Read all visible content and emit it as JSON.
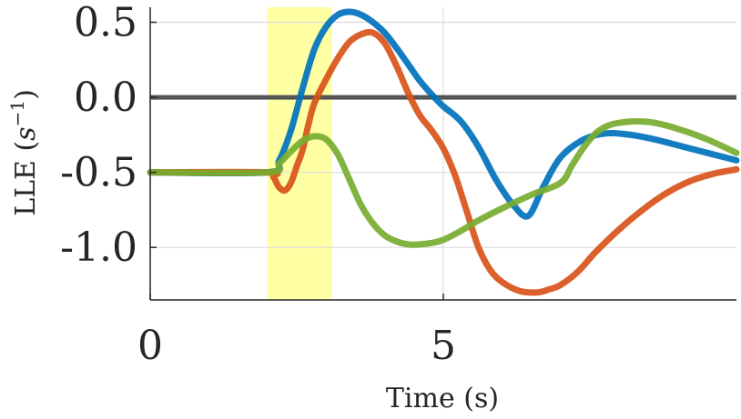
{
  "chart_data": {
    "type": "line",
    "xlabel": "Time (s)",
    "ylabel_text": "LLE (",
    "ylabel_unit_base": "s",
    "ylabel_unit_exp": "−1",
    "ylabel_close": ")",
    "xlim": [
      0,
      10
    ],
    "ylim": [
      -1.35,
      0.6
    ],
    "x_ticks": [
      0,
      5
    ],
    "x_tick_labels": [
      "0",
      "5"
    ],
    "y_ticks": [
      -1.0,
      -0.5,
      0.0,
      0.5
    ],
    "y_tick_labels": [
      "-1.0",
      "-0.5",
      "0.0",
      "0.5"
    ],
    "grid": true,
    "highlight_band": {
      "x": [
        2.0,
        3.1
      ],
      "color": "#ffff99"
    },
    "zero_line": {
      "y": 0.0,
      "color": "#555555"
    },
    "series": [
      {
        "color": "#0072bd",
        "x": [
          0,
          2.0,
          2.2,
          2.4,
          2.6,
          2.8,
          3.0,
          3.2,
          3.4,
          3.6,
          3.8,
          4.0,
          4.2,
          4.4,
          4.6,
          4.8,
          5.0,
          5.3,
          5.6,
          5.9,
          6.2,
          6.45,
          6.7,
          7.0,
          7.4,
          7.8,
          8.2,
          8.6,
          9.0,
          9.5,
          10.0
        ],
        "y": [
          -0.5,
          -0.5,
          -0.42,
          -0.22,
          0.06,
          0.32,
          0.47,
          0.55,
          0.57,
          0.55,
          0.5,
          0.43,
          0.33,
          0.22,
          0.11,
          0.02,
          -0.06,
          -0.16,
          -0.33,
          -0.55,
          -0.72,
          -0.79,
          -0.6,
          -0.4,
          -0.28,
          -0.24,
          -0.25,
          -0.28,
          -0.32,
          -0.37,
          -0.42
        ]
      },
      {
        "color": "#d95319",
        "x": [
          0,
          2.0,
          2.1,
          2.2,
          2.3,
          2.4,
          2.5,
          2.6,
          2.7,
          2.8,
          3.0,
          3.2,
          3.4,
          3.6,
          3.8,
          4.0,
          4.2,
          4.4,
          4.6,
          4.8,
          5.0,
          5.2,
          5.4,
          5.6,
          5.8,
          6.0,
          6.3,
          6.6,
          6.8,
          7.0,
          7.3,
          7.6,
          8.0,
          8.4,
          8.8,
          9.2,
          9.6,
          10.0
        ],
        "y": [
          -0.5,
          -0.5,
          -0.53,
          -0.6,
          -0.62,
          -0.57,
          -0.46,
          -0.35,
          -0.18,
          -0.04,
          0.12,
          0.26,
          0.37,
          0.42,
          0.43,
          0.36,
          0.21,
          0.03,
          -0.12,
          -0.22,
          -0.34,
          -0.52,
          -0.76,
          -1.0,
          -1.15,
          -1.23,
          -1.29,
          -1.3,
          -1.28,
          -1.25,
          -1.16,
          -1.03,
          -0.88,
          -0.75,
          -0.64,
          -0.56,
          -0.51,
          -0.48
        ]
      },
      {
        "color": "#77ac30",
        "x": [
          0,
          2.0,
          2.2,
          2.4,
          2.6,
          2.8,
          3.0,
          3.2,
          3.4,
          3.6,
          3.8,
          4.0,
          4.2,
          4.4,
          4.6,
          4.8,
          5.0,
          5.3,
          5.6,
          6.0,
          6.5,
          7.0,
          7.2,
          7.4,
          7.6,
          7.8,
          8.0,
          8.3,
          8.6,
          9.0,
          9.5,
          10.0
        ],
        "y": [
          -0.5,
          -0.5,
          -0.44,
          -0.36,
          -0.29,
          -0.26,
          -0.28,
          -0.38,
          -0.55,
          -0.72,
          -0.84,
          -0.92,
          -0.96,
          -0.98,
          -0.98,
          -0.97,
          -0.95,
          -0.89,
          -0.82,
          -0.74,
          -0.65,
          -0.57,
          -0.45,
          -0.33,
          -0.24,
          -0.19,
          -0.17,
          -0.16,
          -0.17,
          -0.21,
          -0.28,
          -0.37
        ]
      }
    ]
  }
}
